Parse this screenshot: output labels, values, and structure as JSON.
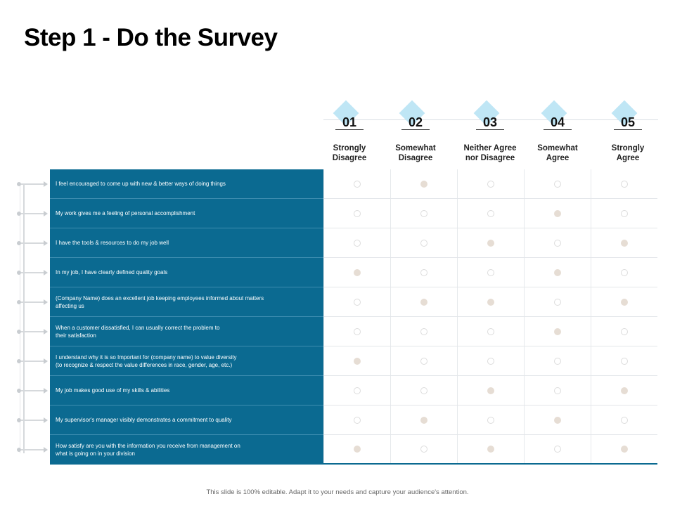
{
  "title": "Step 1 - Do the Survey",
  "columns": [
    {
      "number": "01",
      "label_line1": "Strongly",
      "label_line2": "Disagree"
    },
    {
      "number": "02",
      "label_line1": "Somewhat",
      "label_line2": "Disagree"
    },
    {
      "number": "03",
      "label_line1": "Neither Agree",
      "label_line2": "nor Disagree"
    },
    {
      "number": "04",
      "label_line1": "Somewhat",
      "label_line2": "Agree"
    },
    {
      "number": "05",
      "label_line1": "Strongly",
      "label_line2": "Agree"
    }
  ],
  "questions": [
    {
      "line1": "I feel encouraged to come up with new & better ways of doing things",
      "line2": "",
      "selected": [
        false,
        true,
        false,
        false,
        false
      ]
    },
    {
      "line1": "My work gives me a feeling of personal accomplishment",
      "line2": "",
      "selected": [
        false,
        false,
        false,
        true,
        false
      ]
    },
    {
      "line1": "I have the tools & resources to do my job well",
      "line2": "",
      "selected": [
        false,
        false,
        true,
        false,
        true
      ]
    },
    {
      "line1": "In my job, I have clearly defined quality goals",
      "line2": "",
      "selected": [
        true,
        false,
        false,
        true,
        false
      ]
    },
    {
      "line1": "(Company Name) does an excellent job keeping employees informed about matters",
      "line2": "affecting us",
      "selected": [
        false,
        true,
        true,
        false,
        true
      ]
    },
    {
      "line1": "When a customer dissatisfied, I can usually correct the problem to",
      "line2": "their satisfaction",
      "selected": [
        false,
        false,
        false,
        true,
        false
      ]
    },
    {
      "line1": "I understand why it is so Important for (company name) to value diversity",
      "line2": "(to recognize & respect the value differences in race, gender, age, etc.)",
      "selected": [
        true,
        false,
        false,
        false,
        false
      ]
    },
    {
      "line1": "My job makes good use of my skills & abilities",
      "line2": "",
      "selected": [
        false,
        false,
        true,
        false,
        true
      ]
    },
    {
      "line1": "My supervisor's manager visibly demonstrates a commitment to quality",
      "line2": "",
      "selected": [
        false,
        true,
        false,
        true,
        false
      ]
    },
    {
      "line1": "How satisfy are you with the information you receive from management on",
      "line2": "what is going on in your division",
      "selected": [
        true,
        false,
        true,
        false,
        true
      ]
    }
  ],
  "footer": "This slide is 100% editable. Adapt it to your needs and capture your audience's attention.",
  "colors": {
    "question_bg": "#0b6a91",
    "diamond": "#bfe6f5",
    "selected_dot": "#e6ddd4"
  }
}
